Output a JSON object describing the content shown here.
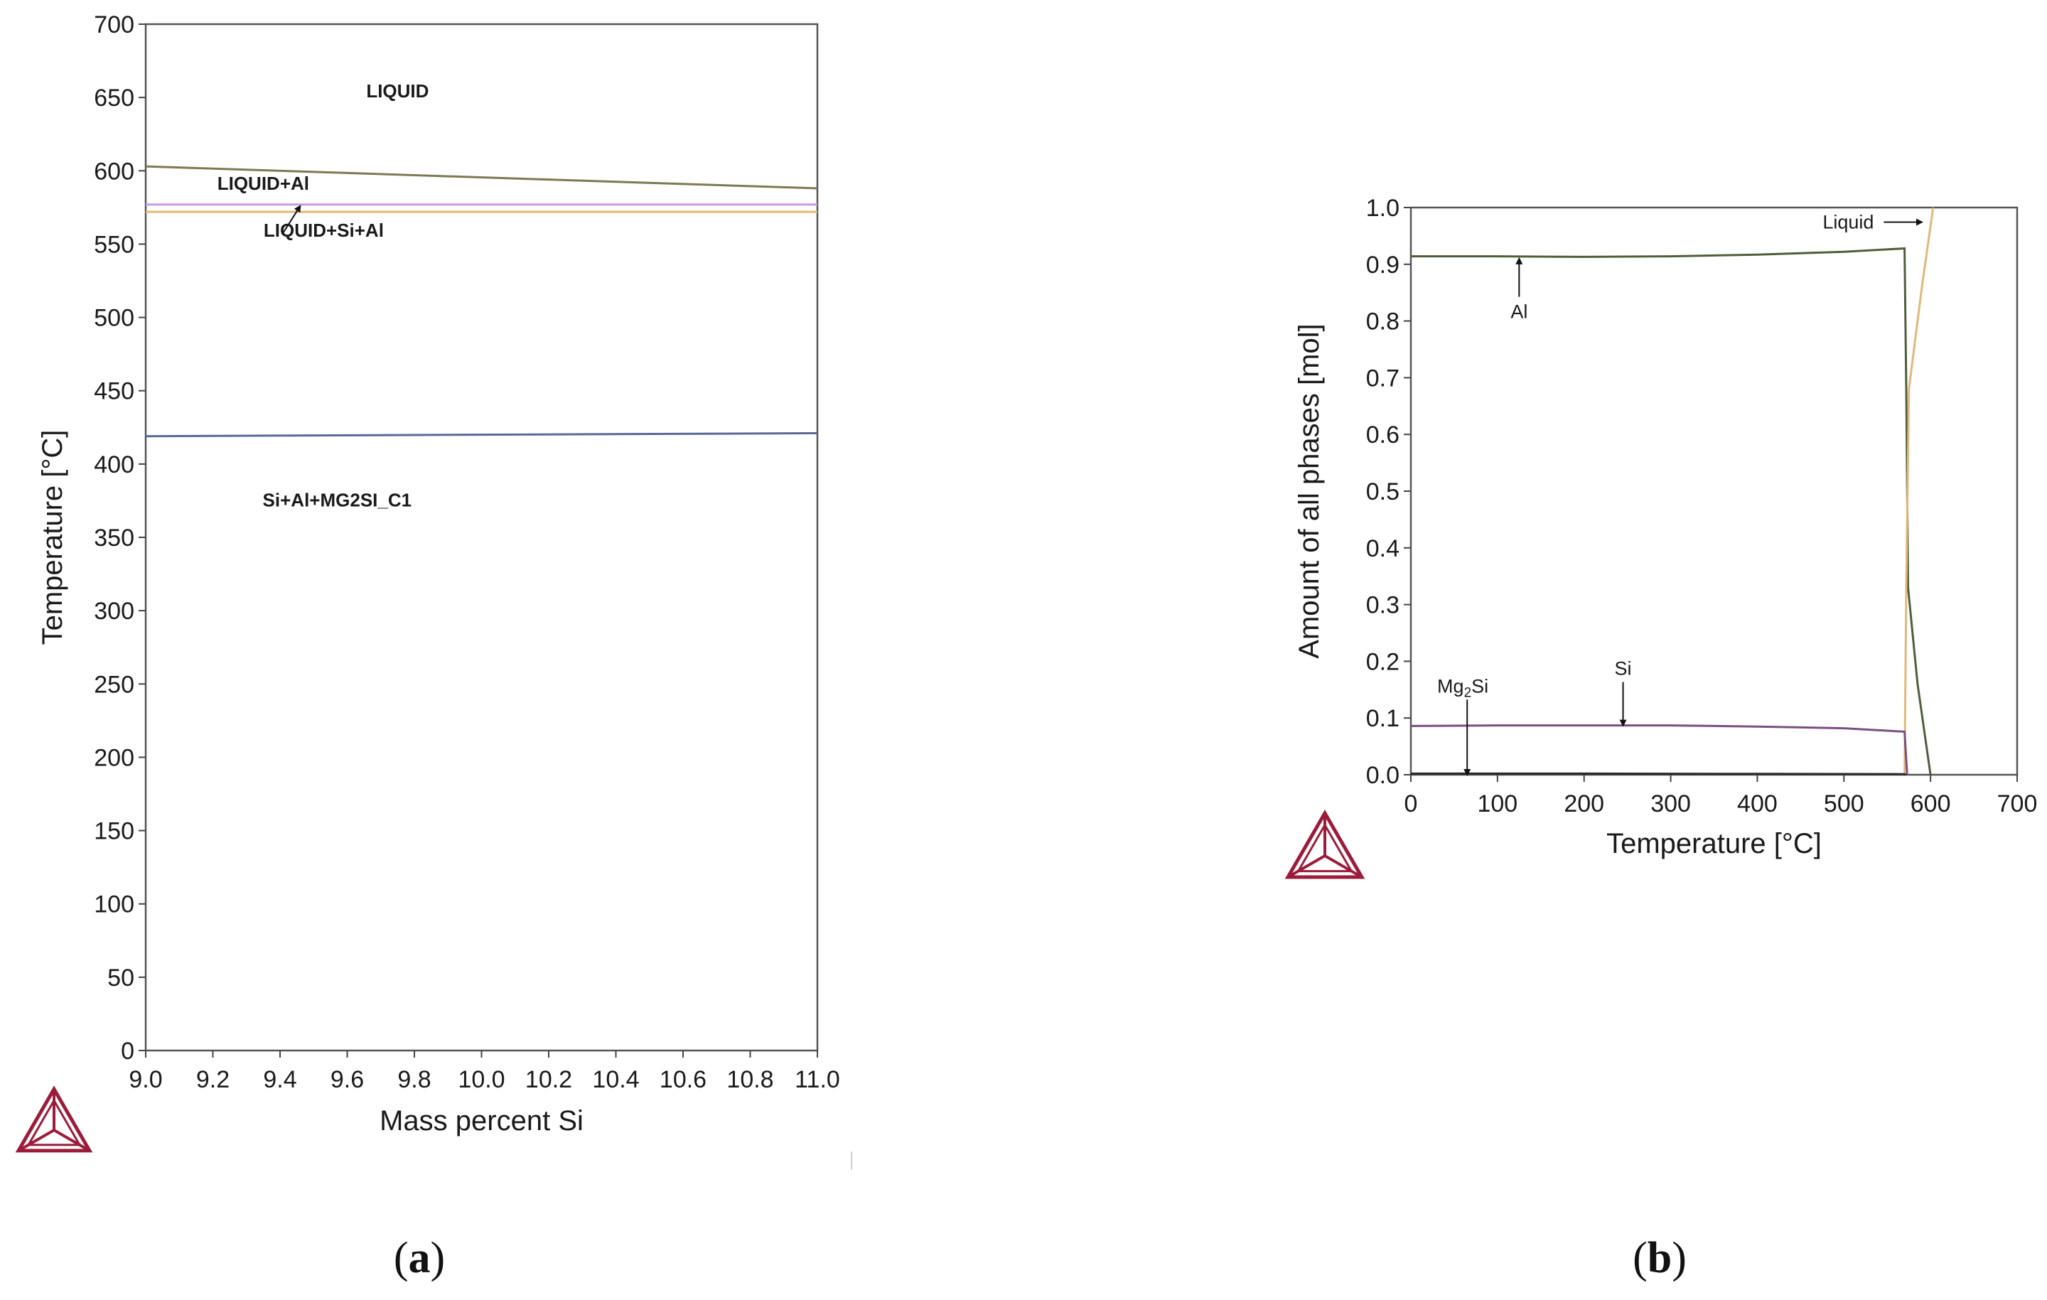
{
  "chart_data": [
    {
      "panel": "a",
      "panel_label": {
        "open": "(",
        "letter": "a",
        "close": ")"
      },
      "type": "line",
      "title": "",
      "xlabel": "Mass percent Si",
      "ylabel": "Temperature [°C]",
      "xlim": [
        9.0,
        11.0
      ],
      "ylim": [
        0,
        700
      ],
      "xticks": [
        "9.0",
        "9.2",
        "9.4",
        "9.6",
        "9.8",
        "10.0",
        "10.2",
        "10.4",
        "10.6",
        "10.8",
        "11.0"
      ],
      "yticks": [
        "0",
        "50",
        "100",
        "150",
        "200",
        "250",
        "300",
        "350",
        "400",
        "450",
        "500",
        "550",
        "600",
        "650",
        "700"
      ],
      "grid": false,
      "series": [
        {
          "color": "#7d7a52",
          "x": [
            9.0,
            11.0
          ],
          "y": [
            603,
            588
          ]
        },
        {
          "color": "#c89adf",
          "x": [
            9.0,
            11.0
          ],
          "y": [
            577,
            577
          ]
        },
        {
          "color": "#e0b870",
          "x": [
            9.0,
            11.0
          ],
          "y": [
            572,
            572
          ]
        },
        {
          "color": "#5a6a96",
          "x": [
            9.0,
            11.0
          ],
          "y": [
            419,
            421
          ]
        }
      ],
      "annotations": [
        {
          "text": "LIQUID",
          "x": 9.75,
          "y": 650
        },
        {
          "text": "LIQUID+Al",
          "x": 9.35,
          "y": 587
        },
        {
          "text": "LIQUID+Si+Al",
          "x": 9.53,
          "y": 555,
          "arrow_to": [
            9.46,
            576
          ]
        },
        {
          "text": "Si+Al+MG2SI_C1",
          "x": 9.57,
          "y": 371
        }
      ]
    },
    {
      "panel": "b",
      "panel_label": {
        "open": "(",
        "letter": "b",
        "close": ")"
      },
      "type": "line",
      "title": "",
      "xlabel": "Temperature [°C]",
      "ylabel": "Amount of all phases [mol]",
      "xlim": [
        0,
        700
      ],
      "ylim": [
        0,
        1.0
      ],
      "xticks": [
        "0",
        "100",
        "200",
        "300",
        "400",
        "500",
        "600",
        "700"
      ],
      "yticks": [
        "0.0",
        "0.1",
        "0.2",
        "0.3",
        "0.4",
        "0.5",
        "0.6",
        "0.7",
        "0.8",
        "0.9",
        "1.0"
      ],
      "grid": false,
      "series": [
        {
          "name": "Al",
          "color": "#4e5e3a",
          "x": [
            0,
            100,
            200,
            300,
            400,
            500,
            570,
            572,
            574,
            585,
            600
          ],
          "y": [
            0.914,
            0.914,
            0.913,
            0.914,
            0.917,
            0.922,
            0.928,
            0.68,
            0.33,
            0.16,
            0.0
          ]
        },
        {
          "name": "Liquid",
          "color": "#e3b77a",
          "x": [
            570,
            572,
            575,
            590,
            603
          ],
          "y": [
            0.0,
            0.33,
            0.68,
            0.86,
            1.0
          ]
        },
        {
          "name": "Si",
          "color": "#7a4f80",
          "x": [
            0,
            100,
            200,
            300,
            400,
            500,
            570,
            573
          ],
          "y": [
            0.086,
            0.087,
            0.087,
            0.087,
            0.085,
            0.082,
            0.076,
            0.0
          ]
        },
        {
          "name": "Mg2Si",
          "color": "#2a2a2a",
          "x": [
            0,
            200,
            400,
            570,
            572
          ],
          "y": [
            0.002,
            0.002,
            0.0015,
            0.001,
            0.0
          ]
        }
      ],
      "annotations": [
        {
          "text": "Liquid",
          "x": 505,
          "y": 0.963,
          "arrow_to": [
            590,
            0.963
          ]
        },
        {
          "text": "Al",
          "x": 125,
          "y": 0.805,
          "arrow_to": [
            125,
            0.91
          ]
        },
        {
          "text": "Si",
          "x": 245,
          "y": 0.176,
          "arrow_to": [
            245,
            0.087
          ]
        },
        {
          "text": "Mg",
          "sub": "2",
          "suffix": "Si",
          "x": 60,
          "y": 0.145,
          "arrow_to": [
            65,
            0.0
          ]
        }
      ]
    }
  ],
  "logo_colors": {
    "primary": "#9b1c3a"
  }
}
